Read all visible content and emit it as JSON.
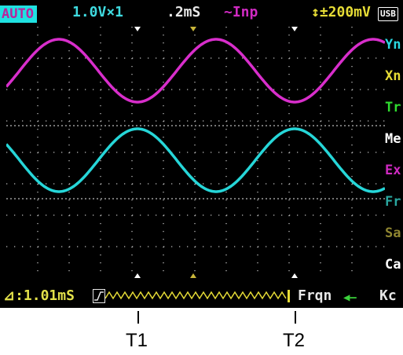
{
  "topbar": {
    "mode": "AUTO",
    "volts_per_div": "1.0V×1",
    "time_per_div": ".2mS",
    "input": "~Inp",
    "trigger": "↕±200mV",
    "usb": "USB"
  },
  "menu": [
    {
      "label": "Yn",
      "color": "#2ad7e0"
    },
    {
      "label": "Xn",
      "color": "#e6dc36"
    },
    {
      "label": "Tr",
      "color": "#2fdc2f"
    },
    {
      "label": "Me",
      "color": "#ffffff"
    },
    {
      "label": "Ex",
      "color": "#d02ac2"
    },
    {
      "label": "Fr",
      "color": "#2aa7a0"
    },
    {
      "label": "Sa",
      "color": "#8f8530"
    },
    {
      "label": "Ca",
      "color": "#ffffff"
    }
  ],
  "bottombar": {
    "delta_time": "⊿:1.01mS",
    "measurement": "Frqn",
    "arrow": "◀—",
    "unit": "Kc"
  },
  "cursors": {
    "t1": "T1",
    "t2": "T2"
  },
  "colors": {
    "trace_a": "#d82ecb",
    "trace_b": "#26d6d8",
    "grid": "#bdbdbd"
  }
}
